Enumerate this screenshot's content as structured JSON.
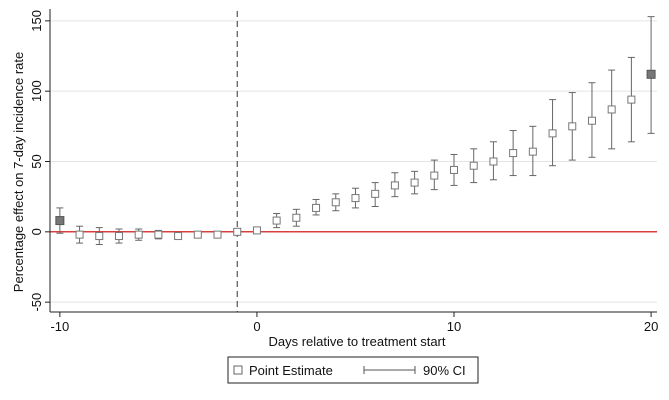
{
  "chart_data": {
    "type": "scatter",
    "xlabel": "Days relative to treatment start",
    "ylabel": "Percentage effect on 7-day incidence rate",
    "xlim": [
      -10.5,
      20.3
    ],
    "ylim": [
      -57,
      157
    ],
    "xticks": [
      -10,
      0,
      10,
      20
    ],
    "yticks": [
      -50,
      0,
      50,
      100,
      150
    ],
    "grid": "horizontal",
    "reference_line": {
      "axis": "y",
      "value": 0,
      "color": "#cc0000"
    },
    "event_line": {
      "axis": "x",
      "value": -1,
      "style": "dashed"
    },
    "legend_position": "bottom",
    "series": [
      {
        "name": "Point Estimate",
        "x": [
          -10,
          -9,
          -8,
          -7,
          -6,
          -5,
          -4,
          -3,
          -2,
          -1,
          0,
          1,
          2,
          3,
          4,
          5,
          6,
          7,
          8,
          9,
          10,
          11,
          12,
          13,
          14,
          15,
          16,
          17,
          18,
          19,
          20
        ],
        "y": [
          8,
          -2,
          -3,
          -3,
          -2,
          -2,
          -3,
          -2,
          -2,
          0,
          1,
          8,
          10,
          17,
          21,
          24,
          27,
          33,
          35,
          40,
          44,
          47,
          50,
          56,
          57,
          70,
          75,
          79,
          87,
          94,
          112
        ],
        "filled": [
          true,
          false,
          false,
          false,
          false,
          false,
          false,
          false,
          false,
          false,
          false,
          false,
          false,
          false,
          false,
          false,
          false,
          false,
          false,
          false,
          false,
          false,
          false,
          false,
          false,
          false,
          false,
          false,
          false,
          false,
          true
        ]
      },
      {
        "name": "90% CI",
        "lower": [
          -1,
          -8,
          -9,
          -8,
          -6,
          -5,
          -5,
          -4,
          -4,
          -1,
          -1,
          3,
          4,
          12,
          15,
          17,
          18,
          25,
          27,
          30,
          33,
          35,
          37,
          40,
          40,
          47,
          51,
          53,
          59,
          64,
          70
        ],
        "upper": [
          17,
          4,
          3,
          2,
          2,
          1,
          -1,
          0,
          0,
          1,
          3,
          13,
          16,
          23,
          27,
          31,
          35,
          42,
          43,
          51,
          55,
          59,
          64,
          72,
          75,
          94,
          99,
          106,
          115,
          124,
          153
        ]
      }
    ]
  }
}
